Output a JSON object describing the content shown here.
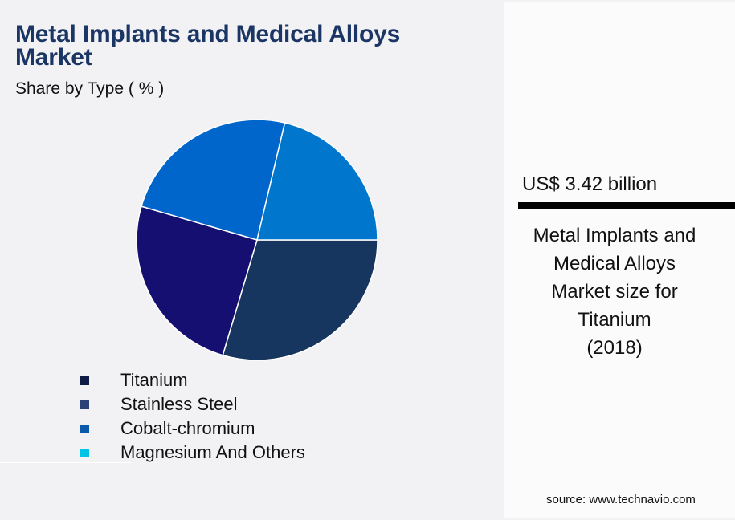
{
  "header": {
    "title": "Metal Implants and Medical Alloys Market",
    "subtitle": "Share by Type ( % )"
  },
  "legend": [
    {
      "label": "Titanium",
      "color": "#0d1b45"
    },
    {
      "label": "Stainless Steel",
      "color": "#2b4277"
    },
    {
      "label": "Cobalt-chromium",
      "color": "#0a5aac"
    },
    {
      "label": "Magnesium And Others",
      "color": "#00c3e6"
    }
  ],
  "kpi": {
    "value": "US$ 3.42 billion",
    "description_lines": [
      "Metal Implants and",
      "Medical Alloys",
      "Market size for",
      "Titanium",
      "(2018)"
    ]
  },
  "footer": {
    "source": "source: www.technavio.com"
  },
  "chart_data": {
    "type": "pie",
    "title": "Metal Implants and Medical Alloys Market",
    "subtitle": "Share by Type ( % )",
    "categories": [
      "Titanium",
      "Stainless Steel",
      "Cobalt-chromium",
      "Magnesium And Others"
    ],
    "values": [
      29.6,
      24.9,
      24.2,
      21.3
    ],
    "slice_colors": [
      "#17365f",
      "#160f72",
      "#0066cc",
      "#0077cc"
    ],
    "legend_position": "bottom",
    "labels_on_slices": false,
    "start_angle_deg": 0,
    "direction": "clockwise-from-east",
    "note": "Values estimated from slice angles; no numeric labels shown"
  }
}
